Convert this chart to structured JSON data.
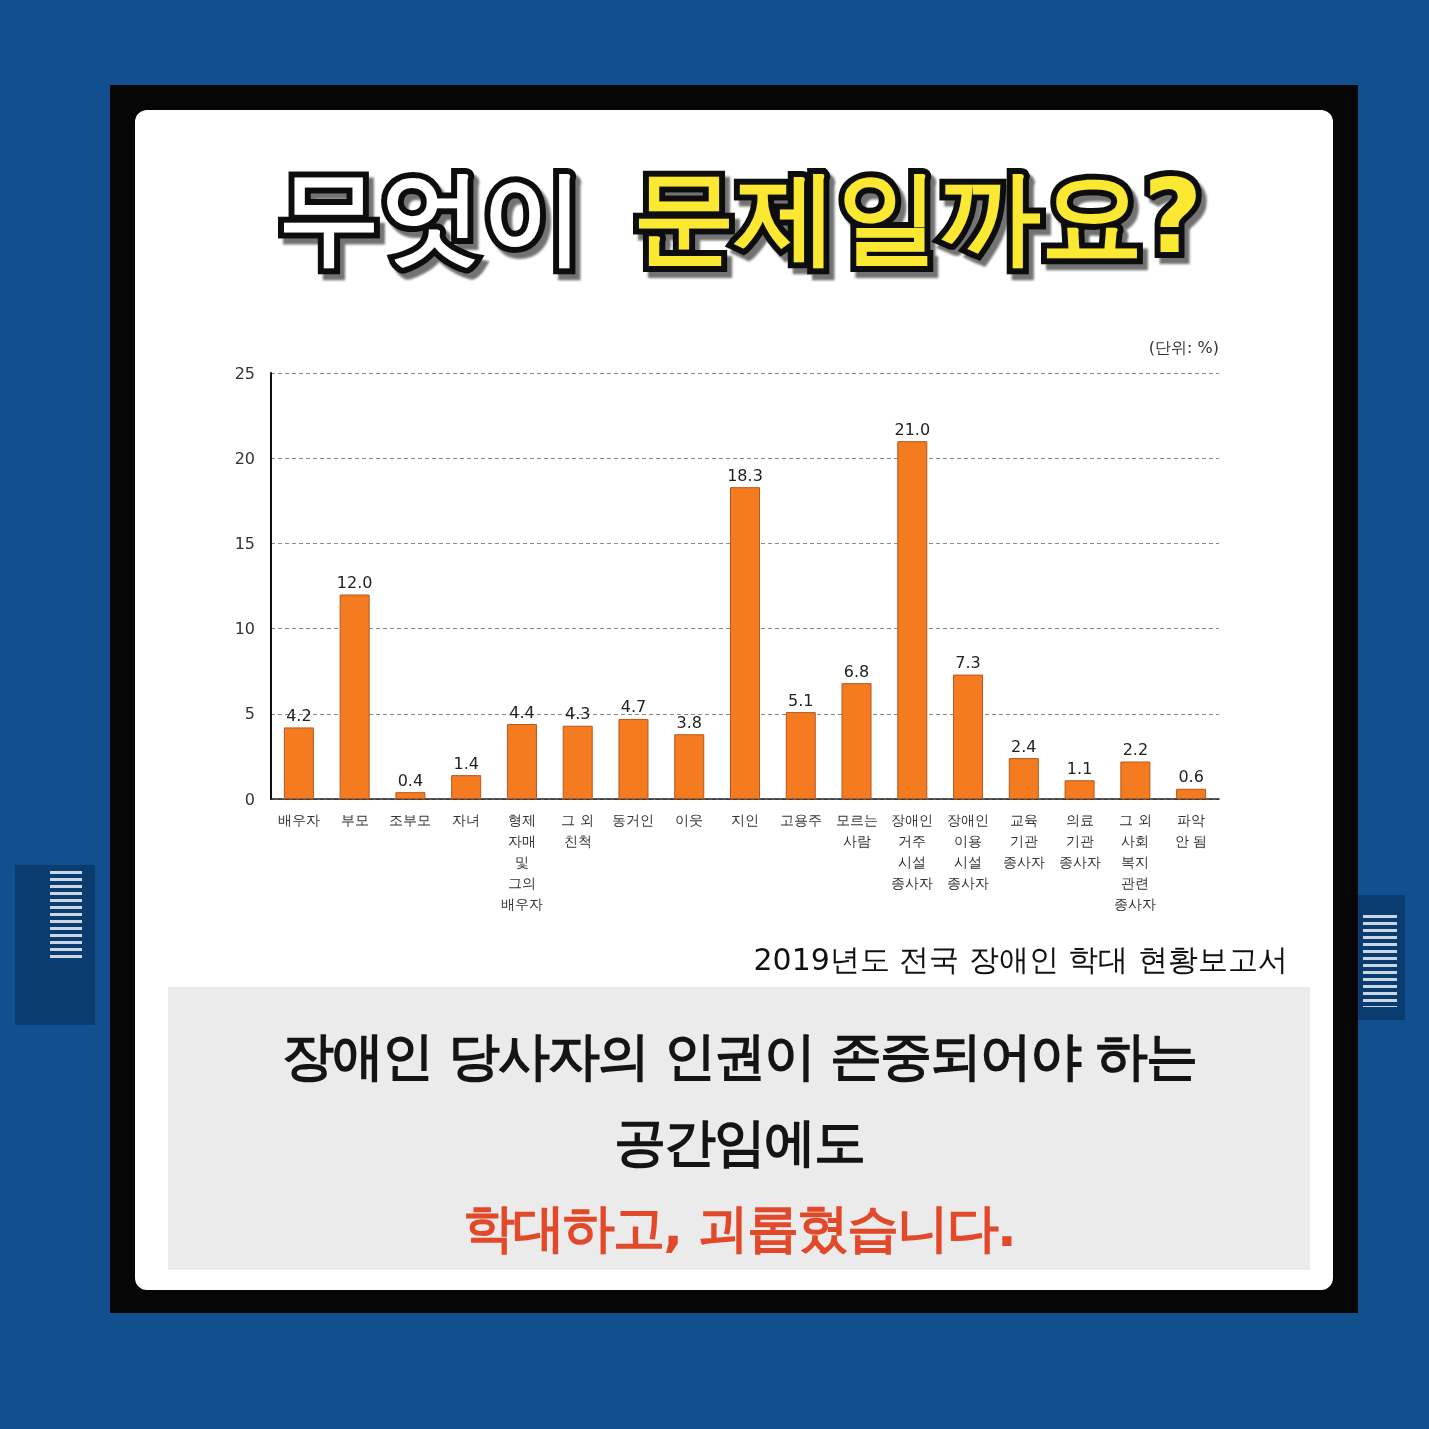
{
  "chart_data": {
    "type": "bar",
    "title": "무엇이 문제일까요?",
    "ylabel": "(단위: %)",
    "categories": [
      "배우자",
      "부모",
      "조부모",
      "자녀",
      "형제\n자매\n및\n그의\n배우자",
      "그 외\n친척",
      "동거인",
      "이웃",
      "지인",
      "고용주",
      "모르는\n사람",
      "장애인\n거주\n시설\n종사자",
      "장애인\n이용\n시설\n종사자",
      "교육\n기관\n종사자",
      "의료\n기관\n종사자",
      "그 외\n사회\n복지\n관련\n종사자",
      "파악\n안 됨"
    ],
    "values": [
      4.2,
      12.0,
      0.4,
      1.4,
      4.4,
      4.3,
      4.7,
      3.8,
      18.3,
      5.1,
      6.8,
      21.0,
      7.3,
      2.4,
      1.1,
      2.2,
      0.6
    ],
    "value_labels": [
      "4.2",
      "12.0",
      "0.4",
      "1.4",
      "4.4",
      "4.3",
      "4.7",
      "3.8",
      "18.3",
      "5.1",
      "6.8",
      "21.0",
      "7.3",
      "2.4",
      "1.1",
      "2.2",
      "0.6"
    ],
    "color": "#f47b20",
    "ylim": [
      0,
      25
    ],
    "yticks": [
      0,
      5,
      10,
      15,
      20,
      25
    ],
    "grid": "y",
    "annotations": [
      "2019년도 전국 장애인 학대 현황보고서",
      "장애인 당사자의 인권이 존중되어야 하는\n공간임에도",
      "학대하고, 괴롭혔습니다."
    ]
  }
}
